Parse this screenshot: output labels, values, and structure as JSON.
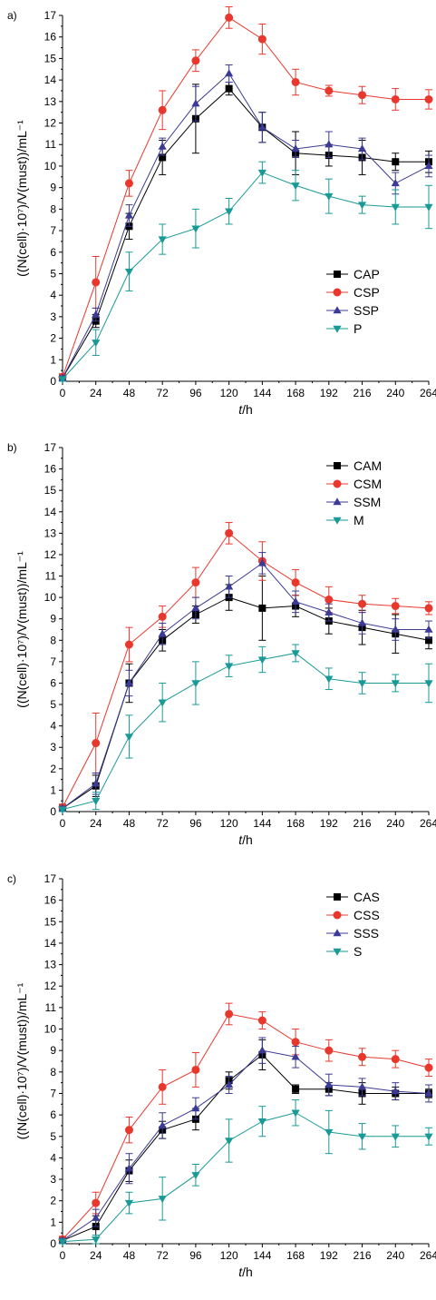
{
  "chart_data": [
    {
      "type": "line",
      "panel_label": "a)",
      "xlabel_italic": "t",
      "xlabel_rest": "/h",
      "ylabel": "((N(cell)·10⁷)/V(must))/mL⁻¹",
      "x": [
        0,
        24,
        48,
        72,
        96,
        120,
        144,
        168,
        192,
        216,
        240,
        264
      ],
      "xlim": [
        0,
        264
      ],
      "ylim": [
        0,
        17
      ],
      "legend_position": "lower-right",
      "series": [
        {
          "name": "CAP",
          "color": "#000000",
          "marker": "square",
          "values": [
            0.15,
            2.8,
            7.2,
            10.4,
            12.2,
            13.6,
            11.8,
            10.6,
            10.5,
            10.4,
            10.2,
            10.2
          ],
          "errors": [
            0.1,
            0.3,
            0.6,
            0.8,
            1.6,
            0.3,
            0.7,
            1.0,
            0.5,
            0.8,
            0.4,
            0.5
          ]
        },
        {
          "name": "CSP",
          "color": "#e8382e",
          "marker": "circle",
          "values": [
            0.2,
            4.6,
            9.2,
            12.6,
            14.9,
            16.9,
            15.9,
            13.9,
            13.5,
            13.3,
            13.1,
            13.1
          ],
          "errors": [
            0.15,
            1.2,
            0.6,
            0.9,
            0.5,
            0.5,
            0.7,
            0.6,
            0.25,
            0.4,
            0.5,
            0.45
          ]
        },
        {
          "name": "SSP",
          "color": "#3b3a94",
          "marker": "triangle-up",
          "values": [
            0.15,
            3.1,
            7.7,
            10.9,
            12.9,
            14.3,
            11.8,
            10.8,
            11.0,
            10.8,
            9.2,
            10.0
          ],
          "errors": [
            0.1,
            0.3,
            0.5,
            0.4,
            0.8,
            0.4,
            0.7,
            0.4,
            0.6,
            0.5,
            0.5,
            0.5
          ]
        },
        {
          "name": "P",
          "color": "#1a9a96",
          "marker": "triangle-down",
          "values": [
            0.1,
            1.8,
            5.1,
            6.6,
            7.1,
            7.9,
            9.7,
            9.1,
            8.6,
            8.2,
            8.1,
            8.1
          ],
          "errors": [
            0.1,
            0.6,
            0.9,
            0.7,
            0.9,
            0.6,
            0.5,
            0.7,
            0.8,
            0.4,
            0.8,
            1.0
          ]
        }
      ]
    },
    {
      "type": "line",
      "panel_label": "b)",
      "xlabel_italic": "t",
      "xlabel_rest": "/h",
      "ylabel": "((N(cell)·10⁷)/V(must))/mL⁻¹",
      "x": [
        0,
        24,
        48,
        72,
        96,
        120,
        144,
        168,
        192,
        216,
        240,
        264
      ],
      "xlim": [
        0,
        264
      ],
      "ylim": [
        0,
        17
      ],
      "legend_position": "top-right",
      "series": [
        {
          "name": "CAM",
          "color": "#000000",
          "marker": "square",
          "values": [
            0.15,
            1.2,
            6.0,
            8.0,
            9.2,
            10.0,
            9.5,
            9.6,
            8.9,
            8.6,
            8.3,
            8.0
          ],
          "errors": [
            0.1,
            0.5,
            0.9,
            0.5,
            0.4,
            0.6,
            1.5,
            0.5,
            0.6,
            0.8,
            0.9,
            0.4
          ]
        },
        {
          "name": "CSM",
          "color": "#e8382e",
          "marker": "circle",
          "values": [
            0.2,
            3.2,
            7.8,
            9.1,
            10.7,
            13.0,
            11.7,
            10.7,
            9.9,
            9.7,
            9.6,
            9.5
          ],
          "errors": [
            0.15,
            1.4,
            0.8,
            0.5,
            0.7,
            0.5,
            0.9,
            0.6,
            0.6,
            0.4,
            0.35,
            0.3
          ]
        },
        {
          "name": "SSM",
          "color": "#3b3a94",
          "marker": "triangle-up",
          "values": [
            0.15,
            1.3,
            6.0,
            8.3,
            9.5,
            10.5,
            11.6,
            9.8,
            9.3,
            8.8,
            8.5,
            8.5
          ],
          "errors": [
            0.1,
            0.5,
            0.6,
            0.5,
            0.5,
            0.5,
            0.5,
            0.5,
            0.4,
            0.5,
            0.5,
            0.4
          ]
        },
        {
          "name": "M",
          "color": "#1a9a96",
          "marker": "triangle-down",
          "values": [
            0.1,
            0.5,
            3.5,
            5.1,
            6.0,
            6.8,
            7.1,
            7.4,
            6.2,
            6.0,
            6.0,
            6.0
          ],
          "errors": [
            0.1,
            0.4,
            1.0,
            0.9,
            1.0,
            0.5,
            0.6,
            0.4,
            0.5,
            0.5,
            0.4,
            0.9
          ]
        }
      ]
    },
    {
      "type": "line",
      "panel_label": "c)",
      "xlabel_italic": "t",
      "xlabel_rest": "/h",
      "ylabel": "((N(cell)·10⁷)/V(must))/mL⁻¹",
      "x": [
        0,
        24,
        48,
        72,
        96,
        120,
        144,
        168,
        192,
        216,
        240,
        264
      ],
      "xlim": [
        0,
        264
      ],
      "ylim": [
        0,
        17
      ],
      "legend_position": "top-right",
      "series": [
        {
          "name": "CAS",
          "color": "#000000",
          "marker": "square",
          "values": [
            0.15,
            0.8,
            3.4,
            5.3,
            5.8,
            7.6,
            8.8,
            7.2,
            7.2,
            7.0,
            7.0,
            7.0
          ],
          "errors": [
            0.1,
            0.5,
            0.5,
            0.4,
            0.5,
            0.4,
            0.7,
            0.2,
            0.3,
            0.5,
            0.3,
            0.2
          ]
        },
        {
          "name": "CSS",
          "color": "#e8382e",
          "marker": "circle",
          "values": [
            0.2,
            1.9,
            5.3,
            7.3,
            8.1,
            10.7,
            10.4,
            9.4,
            9.0,
            8.7,
            8.6,
            8.2
          ],
          "errors": [
            0.15,
            0.5,
            0.6,
            0.8,
            0.8,
            0.5,
            0.4,
            0.6,
            0.5,
            0.4,
            0.4,
            0.4
          ]
        },
        {
          "name": "SSS",
          "color": "#3b3a94",
          "marker": "triangle-up",
          "values": [
            0.15,
            1.2,
            3.5,
            5.5,
            6.3,
            7.4,
            9.0,
            8.7,
            7.4,
            7.3,
            7.1,
            7.0
          ],
          "errors": [
            0.1,
            0.4,
            0.7,
            0.6,
            0.5,
            0.4,
            0.6,
            0.5,
            0.5,
            0.4,
            0.4,
            0.4
          ]
        },
        {
          "name": "S",
          "color": "#1a9a96",
          "marker": "triangle-down",
          "values": [
            0.1,
            0.2,
            1.9,
            2.1,
            3.2,
            4.8,
            5.7,
            6.1,
            5.2,
            5.0,
            5.0,
            5.0
          ],
          "errors": [
            0.1,
            0.2,
            0.5,
            1.0,
            0.5,
            1.0,
            0.7,
            0.6,
            1.0,
            0.6,
            0.5,
            0.4
          ]
        }
      ]
    }
  ]
}
